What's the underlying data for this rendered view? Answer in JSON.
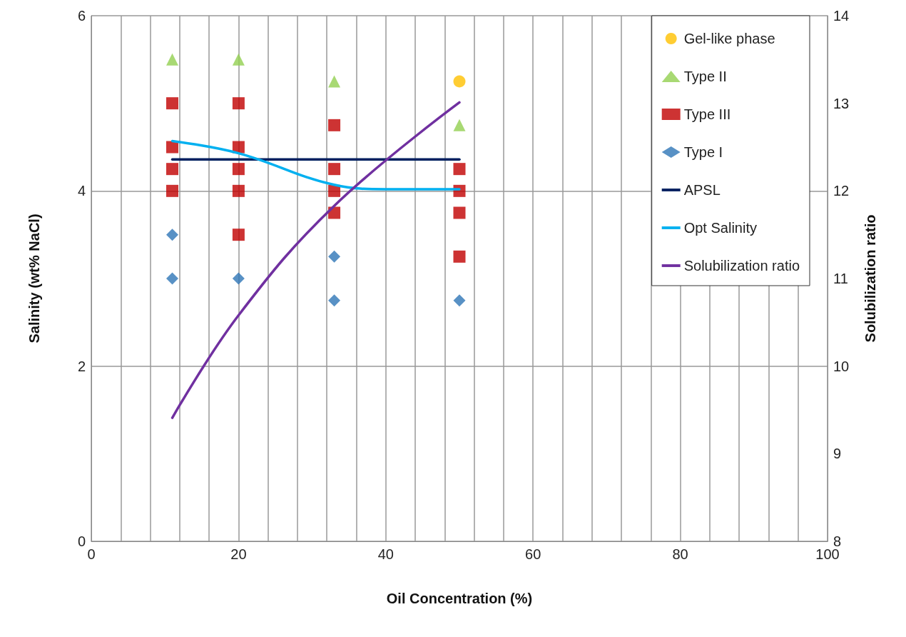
{
  "chart_data": {
    "type": "scatter",
    "xlabel": "Oil Concentration (%)",
    "ylabel": "Salinity (wt% NaCl)",
    "y2label": "Solubilization ratio",
    "xlim": [
      0,
      100
    ],
    "xticks": [
      0,
      {
        "value": 4,
        "label": null
      },
      {
        "value": 8,
        "label": null
      },
      {
        "value": 12,
        "label": null
      },
      {
        "value": 16,
        "label": null
      },
      20,
      {
        "value": 24,
        "label": null
      },
      {
        "value": 28,
        "label": null
      },
      {
        "value": 32,
        "label": null
      },
      {
        "value": 36,
        "label": null
      },
      40,
      {
        "value": 44,
        "label": null
      },
      {
        "value": 48,
        "label": null
      },
      {
        "value": 52,
        "label": null
      },
      {
        "value": 56,
        "label": null
      },
      60,
      {
        "value": 64,
        "label": null
      },
      {
        "value": 68,
        "label": null
      },
      {
        "value": 72,
        "label": null
      },
      {
        "value": 76,
        "label": null
      },
      80,
      {
        "value": 84,
        "label": null
      },
      {
        "value": 88,
        "label": null
      },
      {
        "value": 92,
        "label": null
      },
      {
        "value": 96,
        "label": null
      },
      100
    ],
    "ylim": [
      0,
      6
    ],
    "yticks": [
      0,
      2,
      4,
      6
    ],
    "y2lim": [
      8,
      14
    ],
    "y2ticks": [
      8,
      9,
      10,
      11,
      12,
      13,
      14
    ],
    "grid": true,
    "legend": "top right",
    "series": [
      {
        "name": "Gel-like phase",
        "marker": "circle",
        "color": "#ffc000",
        "x": [
          50
        ],
        "values": [
          5.25
        ]
      },
      {
        "name": "Type II",
        "marker": "triangle",
        "color": "#92d050",
        "x": [
          11,
          20,
          33,
          50
        ],
        "values": [
          5.5,
          5.5,
          5.25,
          4.75
        ]
      },
      {
        "name": "Type III",
        "marker": "square",
        "color": "#c00000",
        "x": [
          11,
          11,
          11,
          11,
          20,
          20,
          20,
          20,
          20,
          33,
          33,
          33,
          33,
          50,
          50,
          50,
          50
        ],
        "values": [
          5,
          4.5,
          4.25,
          4,
          5,
          4.5,
          4.25,
          4,
          3.5,
          4.75,
          4.25,
          4,
          3.75,
          4.25,
          4,
          3.75,
          3.25
        ]
      },
      {
        "name": "Type I",
        "marker": "diamond",
        "color": "#2e75b6",
        "x": [
          11,
          11,
          20,
          33,
          33,
          50
        ],
        "values": [
          3.5,
          3,
          3,
          3.25,
          2.75,
          2.75
        ]
      },
      {
        "name": "APSL",
        "type": "line",
        "marker": "none",
        "color": "#002060",
        "x": [
          11,
          50
        ],
        "values": [
          4.36,
          4.36
        ]
      },
      {
        "name": "Opt Salinity",
        "type": "line",
        "marker": "none",
        "color": "#00b0f0",
        "x": [
          11,
          20,
          33,
          40,
          50
        ],
        "values": [
          4.57,
          4.43,
          4.07,
          4.02,
          4.02
        ]
      },
      {
        "name": "Solubilization ratio",
        "type": "line",
        "marker": "none",
        "axis": "y2",
        "color": "#7030a0",
        "x": [
          11,
          20,
          33,
          50
        ],
        "values": [
          9.41,
          10.58,
          11.83,
          13.01
        ]
      }
    ]
  }
}
